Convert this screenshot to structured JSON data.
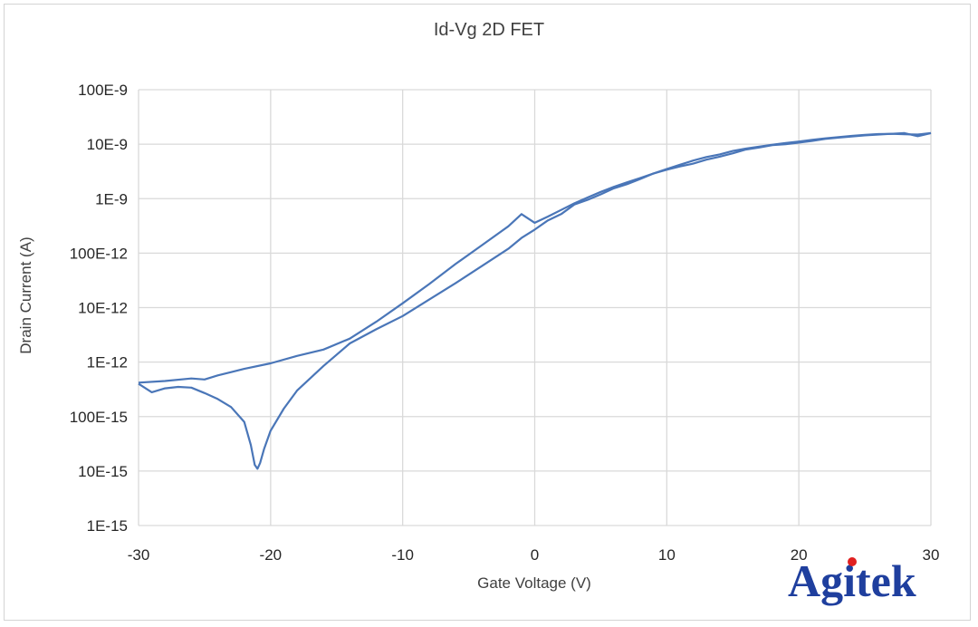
{
  "brand": {
    "logo_text": "Agitek",
    "logo_color": "#1f3f9e",
    "logo_dot_color": "#e02020"
  },
  "chart_data": {
    "type": "line",
    "title": "Id-Vg 2D FET",
    "xlabel": "Gate Voltage (V)",
    "ylabel": "Drain Current (A)",
    "xlim": [
      -30,
      30
    ],
    "ylim": [
      1e-15,
      1e-07
    ],
    "y_scale": "log",
    "x_ticks": [
      -30,
      -20,
      -10,
      0,
      10,
      20,
      30
    ],
    "x_tick_labels": [
      "-30",
      "-20",
      "-10",
      "0",
      "10",
      "20",
      "30"
    ],
    "y_ticks": [
      1e-15,
      1e-14,
      1e-13,
      1e-12,
      1e-11,
      1e-10,
      1e-09,
      1e-08,
      1e-07
    ],
    "y_tick_labels": [
      "1E-15",
      "10E-15",
      "100E-15",
      "1E-12",
      "10E-12",
      "100E-12",
      "1E-9",
      "10E-9",
      "100E-9"
    ],
    "grid": true,
    "line_color": "#4a76b8",
    "series": [
      {
        "x": [
          -30,
          -29,
          -28,
          -27,
          -26,
          -25,
          -24,
          -23,
          -22,
          -21.5,
          -21.2,
          -21,
          -20.8,
          -20.5,
          -20,
          -19,
          -18,
          -16,
          -14,
          -12,
          -10,
          -8,
          -6,
          -4,
          -2,
          -1,
          0,
          1,
          2,
          3,
          4,
          5,
          6,
          7,
          8,
          9,
          10,
          11,
          12,
          13,
          14,
          15,
          16,
          17,
          18,
          19,
          20,
          21,
          22,
          23,
          24,
          25,
          26,
          27,
          28,
          29,
          30
        ],
        "y": [
          4e-13,
          2.8e-13,
          3.3e-13,
          3.5e-13,
          3.4e-13,
          2.7e-13,
          2.1e-13,
          1.5e-13,
          8e-14,
          3e-14,
          1.3e-14,
          1.1e-14,
          1.4e-14,
          2.5e-14,
          5.5e-14,
          1.4e-13,
          3e-13,
          8.5e-13,
          2.2e-12,
          4e-12,
          7e-12,
          1.4e-11,
          2.8e-11,
          5.8e-11,
          1.2e-10,
          1.9e-10,
          2.7e-10,
          4e-10,
          5.2e-10,
          7.8e-10,
          9.5e-10,
          1.2e-09,
          1.55e-09,
          1.85e-09,
          2.3e-09,
          2.9e-09,
          3.5e-09,
          4.2e-09,
          5e-09,
          5.8e-09,
          6.5e-09,
          7.5e-09,
          8.3e-09,
          9e-09,
          9.8e-09,
          1.05e-08,
          1.12e-08,
          1.2e-08,
          1.28e-08,
          1.35e-08,
          1.42e-08,
          1.48e-08,
          1.53e-08,
          1.55e-08,
          1.52e-08,
          1.5e-08,
          1.6e-08
        ]
      },
      {
        "x": [
          30,
          29,
          28,
          27,
          26,
          25,
          24,
          23,
          22,
          21,
          20,
          19,
          18,
          17,
          16,
          15,
          14,
          13,
          12,
          11,
          10,
          9,
          8,
          7,
          6,
          5,
          4,
          3,
          2,
          1,
          0,
          -1,
          -2,
          -4,
          -6,
          -8,
          -10,
          -12,
          -14,
          -16,
          -18,
          -20,
          -22,
          -24,
          -25,
          -26,
          -28,
          -30
        ],
        "y": [
          1.6e-08,
          1.4e-08,
          1.6e-08,
          1.55e-08,
          1.5e-08,
          1.45e-08,
          1.38e-08,
          1.32e-08,
          1.25e-08,
          1.15e-08,
          1.07e-08,
          1e-08,
          9.6e-09,
          8.7e-09,
          8e-09,
          6.8e-09,
          5.9e-09,
          5.2e-09,
          4.4e-09,
          3.9e-09,
          3.4e-09,
          2.9e-09,
          2.4e-09,
          2e-09,
          1.65e-09,
          1.33e-09,
          1.05e-09,
          8.2e-10,
          6.2e-10,
          4.7e-10,
          3.6e-10,
          5.2e-10,
          3.1e-10,
          1.4e-10,
          6.3e-11,
          2.7e-11,
          1.2e-11,
          5.5e-12,
          2.7e-12,
          1.7e-12,
          1.3e-12,
          9.5e-13,
          7.5e-13,
          5.7e-13,
          4.8e-13,
          5e-13,
          4.5e-13,
          4.2e-13
        ]
      }
    ]
  }
}
